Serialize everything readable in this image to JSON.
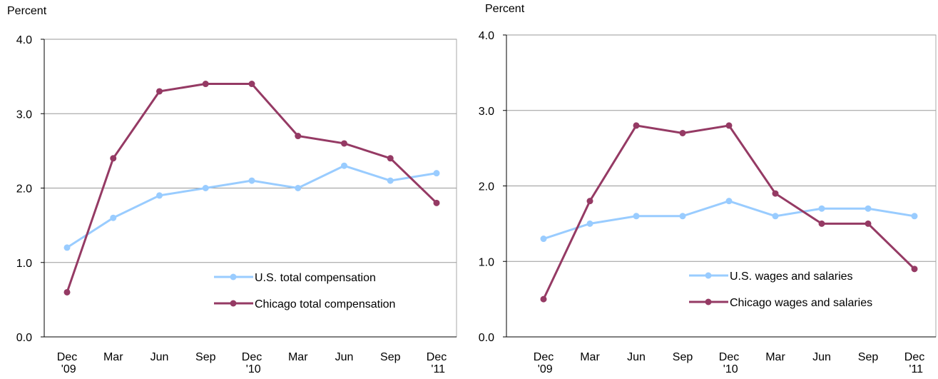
{
  "chart_data": [
    {
      "type": "line",
      "y_label": "Percent",
      "categories": [
        "Dec\n'09",
        "Mar",
        "Jun",
        "Sep",
        "Dec\n'10",
        "Mar",
        "Jun",
        "Sep",
        "Dec\n'11"
      ],
      "series": [
        {
          "name": "U.S. total compensation",
          "color": "#99ccff",
          "values": [
            1.2,
            1.6,
            1.9,
            2.0,
            2.1,
            2.0,
            2.3,
            2.1,
            2.2
          ]
        },
        {
          "name": "Chicago total compensation",
          "color": "#953a64",
          "values": [
            0.6,
            2.4,
            3.3,
            3.4,
            3.4,
            2.7,
            2.6,
            2.4,
            1.8
          ]
        }
      ],
      "ylim": [
        0,
        4
      ],
      "yticks": [
        {
          "value": 0,
          "label": "0.0"
        },
        {
          "value": 1,
          "label": "1.0"
        },
        {
          "value": 2,
          "label": "2.0"
        },
        {
          "value": 3,
          "label": "3.0"
        },
        {
          "value": 4,
          "label": "4.0"
        }
      ],
      "grid": true,
      "legend": "lower right"
    },
    {
      "type": "line",
      "y_label": "Percent",
      "categories": [
        "Dec\n'09",
        "Mar",
        "Jun",
        "Sep",
        "Dec\n'10",
        "Mar",
        "Jun",
        "Sep",
        "Dec\n'11"
      ],
      "series": [
        {
          "name": "U.S. wages and salaries",
          "color": "#99ccff",
          "values": [
            1.3,
            1.5,
            1.6,
            1.6,
            1.8,
            1.6,
            1.7,
            1.7,
            1.6
          ]
        },
        {
          "name": "Chicago wages and salaries",
          "color": "#953a64",
          "values": [
            0.5,
            1.8,
            2.8,
            2.7,
            2.8,
            1.9,
            1.5,
            1.5,
            0.9
          ]
        }
      ],
      "ylim": [
        0,
        4
      ],
      "yticks": [
        {
          "value": 0,
          "label": "0.0"
        },
        {
          "value": 1,
          "label": "1.0"
        },
        {
          "value": 2,
          "label": "2.0"
        },
        {
          "value": 3,
          "label": "3.0"
        },
        {
          "value": 4,
          "label": "4.0"
        }
      ],
      "grid": true,
      "legend": "lower right"
    }
  ]
}
